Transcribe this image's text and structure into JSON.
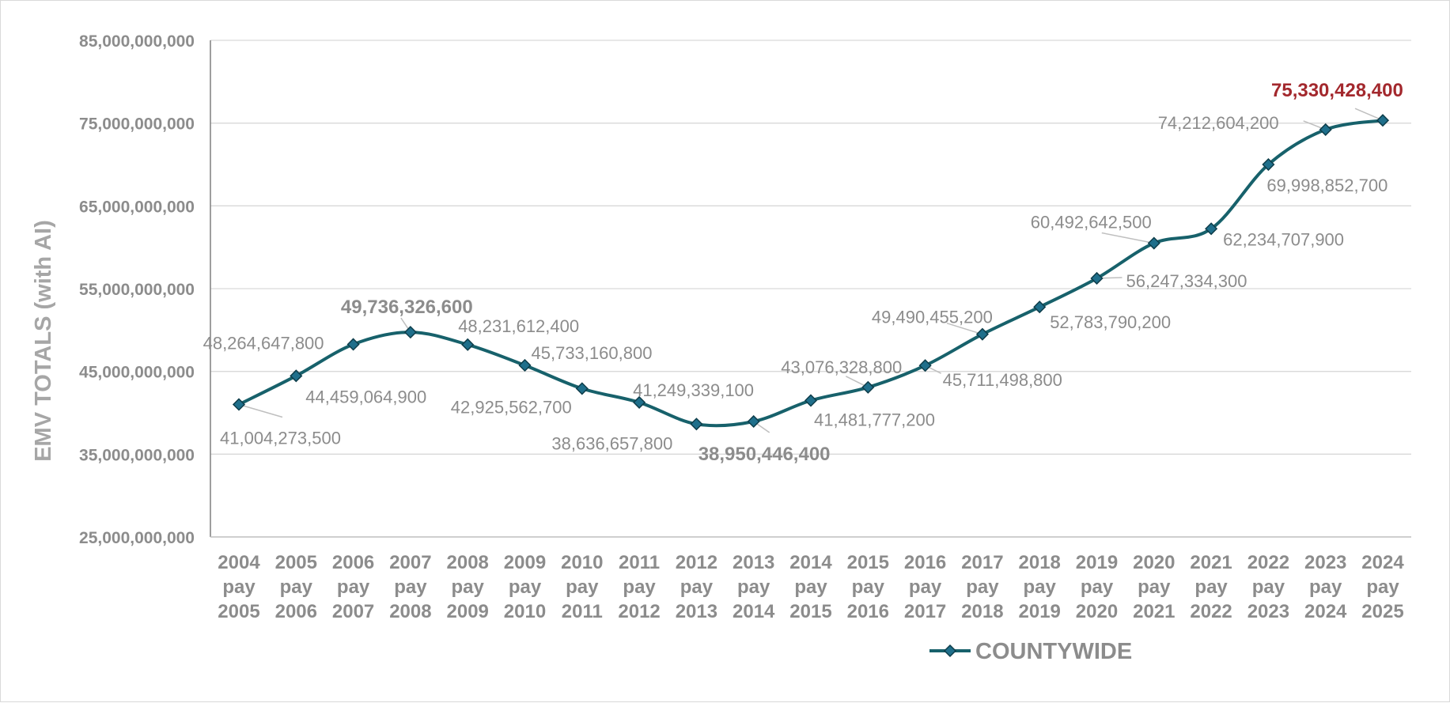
{
  "chart_data": {
    "type": "line",
    "smooth": true,
    "ylabel": "EMV TOTALS (with AI)",
    "xlabel": "",
    "ylim": [
      25000000000,
      85000000000
    ],
    "ytick_step": 10000000000,
    "y_ticks": [
      "85,000,000,000",
      "75,000,000,000",
      "65,000,000,000",
      "55,000,000,000",
      "45,000,000,000",
      "35,000,000,000",
      "25,000,000,000"
    ],
    "grid": true,
    "legend_position": "bottom",
    "colors": {
      "line": "#17616b",
      "marker": "#1f6f8b",
      "accent_label": "#a3282d",
      "text": "#8c8c8c",
      "grid": "#d9d9d9"
    },
    "categories": [
      [
        "2004",
        "pay",
        "2005"
      ],
      [
        "2005",
        "pay",
        "2006"
      ],
      [
        "2006",
        "pay",
        "2007"
      ],
      [
        "2007",
        "pay",
        "2008"
      ],
      [
        "2008",
        "pay",
        "2009"
      ],
      [
        "2009",
        "pay",
        "2010"
      ],
      [
        "2010",
        "pay",
        "2011"
      ],
      [
        "2011",
        "pay",
        "2012"
      ],
      [
        "2012",
        "pay",
        "2013"
      ],
      [
        "2013",
        "pay",
        "2014"
      ],
      [
        "2014",
        "pay",
        "2015"
      ],
      [
        "2015",
        "pay",
        "2016"
      ],
      [
        "2016",
        "pay",
        "2017"
      ],
      [
        "2017",
        "pay",
        "2018"
      ],
      [
        "2018",
        "pay",
        "2019"
      ],
      [
        "2019",
        "pay",
        "2020"
      ],
      [
        "2020",
        "pay",
        "2021"
      ],
      [
        "2021",
        "pay",
        "2022"
      ],
      [
        "2022",
        "pay",
        "2023"
      ],
      [
        "2023",
        "pay",
        "2024"
      ],
      [
        "2024",
        "pay",
        "2025"
      ]
    ],
    "series": [
      {
        "name": "COUNTYWIDE",
        "values": [
          41004273500,
          44459064900,
          48264647800,
          49736326600,
          48231612400,
          45733160800,
          42925562700,
          41249339100,
          38636657800,
          38950446400,
          41481777200,
          43076328800,
          45711498800,
          49490455200,
          52783790200,
          56247334300,
          60492642500,
          62234707900,
          69998852700,
          74212604200,
          75330428400
        ],
        "labels": [
          "41,004,273,500",
          "44,459,064,900",
          "48,264,647,800",
          "49,736,326,600",
          "48,231,612,400",
          "45,733,160,800",
          "42,925,562,700",
          "41,249,339,100",
          "38,636,657,800",
          "38,950,446,400",
          "41,481,777,200",
          "43,076,328,800",
          "45,711,498,800",
          "49,490,455,200",
          "52,783,790,200",
          "56,247,334,300",
          "60,492,642,500",
          "62,234,707,900",
          "69,998,852,700",
          "74,212,604,200",
          "75,330,428,400"
        ],
        "highlight_bold": [
          3,
          9,
          20
        ],
        "highlight_accent": [
          20
        ]
      }
    ]
  }
}
